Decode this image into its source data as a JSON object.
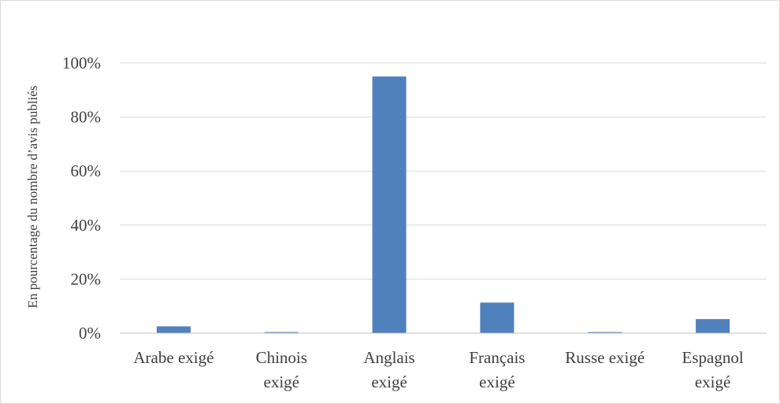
{
  "chart_data": {
    "type": "bar",
    "title": "",
    "xlabel": "",
    "ylabel": "En pourcentage du nombre d’avis publiés",
    "categories": [
      [
        "Arabe exigé"
      ],
      [
        "Chinois",
        "exigé"
      ],
      [
        "Anglais",
        "exigé"
      ],
      [
        "Français",
        "exigé"
      ],
      [
        "Russe exigé"
      ],
      [
        "Espagnol",
        "exigé"
      ]
    ],
    "values": [
      2.5,
      0.4,
      95,
      11.3,
      0.4,
      5.2
    ],
    "value_unit": "%",
    "ylim": [
      0,
      100
    ],
    "yticks": [
      0,
      20,
      40,
      60,
      80,
      100
    ],
    "ytick_labels": [
      "0%",
      "20%",
      "40%",
      "60%",
      "80%",
      "100%"
    ],
    "grid": true,
    "legend": "none",
    "colors": {
      "bar": "#4f81bd",
      "grid": "#d9d9d9",
      "text": "#404040"
    }
  }
}
